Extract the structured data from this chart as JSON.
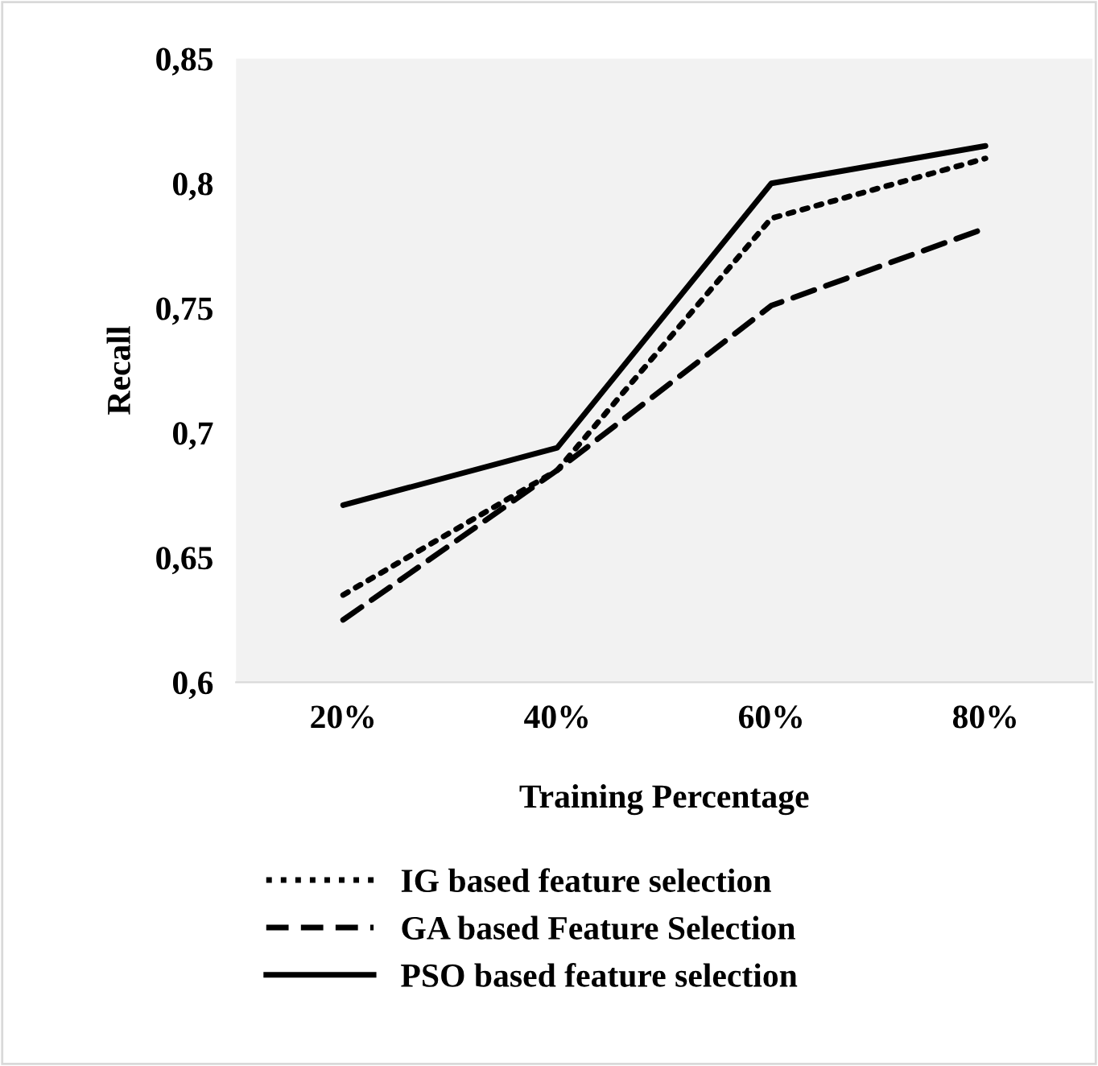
{
  "chart_data": {
    "type": "line",
    "xlabel": "Training Percentage",
    "ylabel": "Recall",
    "categories": [
      "20%",
      "40%",
      "60%",
      "80%"
    ],
    "series": [
      {
        "name": "IG based feature selection",
        "color": "#000000",
        "line_style": "dotted",
        "values": [
          0.635,
          0.685,
          0.786,
          0.81
        ]
      },
      {
        "name": "GA based Feature Selection",
        "color": "#000000",
        "line_style": "dashed",
        "values": [
          0.625,
          0.685,
          0.751,
          0.782
        ]
      },
      {
        "name": "PSO based feature selection",
        "color": "#000000",
        "line_style": "solid",
        "values": [
          0.671,
          0.694,
          0.8,
          0.815
        ]
      }
    ],
    "ylim": [
      0.6,
      0.85
    ],
    "yticks": [
      {
        "value": 0.6,
        "label": "0,6"
      },
      {
        "value": 0.65,
        "label": "0,65"
      },
      {
        "value": 0.7,
        "label": "0,7"
      },
      {
        "value": 0.75,
        "label": "0,75"
      },
      {
        "value": 0.8,
        "label": "0,8"
      },
      {
        "value": 0.85,
        "label": "0,85"
      }
    ],
    "grid": false,
    "legend": "bottom",
    "marker": "none"
  }
}
